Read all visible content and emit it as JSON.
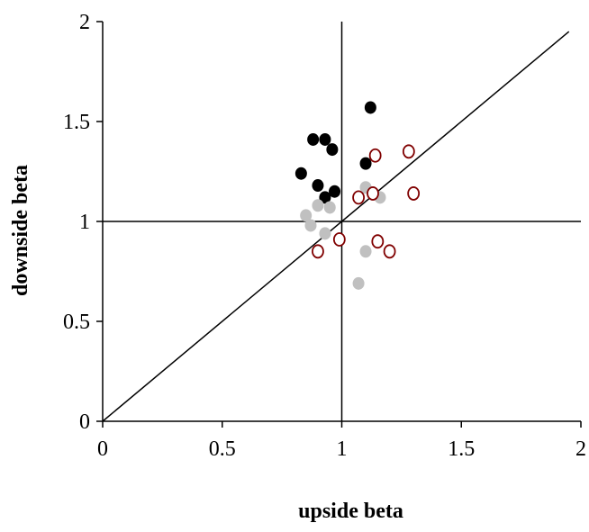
{
  "chart_data": {
    "type": "scatter",
    "title": "",
    "xlabel": "upside beta",
    "ylabel": "downside beta",
    "xlim": [
      0,
      2
    ],
    "ylim": [
      0,
      2
    ],
    "x_ticks": [
      "0",
      "0.5",
      "1",
      "1.5",
      "2"
    ],
    "y_ticks": [
      "0",
      "0.5",
      "1",
      "1.5",
      "2"
    ],
    "x_tick_values": [
      0,
      0.5,
      1,
      1.5,
      2
    ],
    "y_tick_values": [
      0,
      0.5,
      1,
      1.5,
      2
    ],
    "grid": false,
    "legend": "none",
    "reference_lines": [
      {
        "type": "vertical",
        "x": 1
      },
      {
        "type": "horizontal",
        "y": 1
      },
      {
        "type": "diagonal",
        "from": [
          0,
          0
        ],
        "to": [
          1.95,
          1.95
        ]
      }
    ],
    "series": [
      {
        "marker": "filled",
        "color": "#000000",
        "points": [
          [
            0.83,
            1.24
          ],
          [
            0.88,
            1.41
          ],
          [
            0.93,
            1.41
          ],
          [
            0.96,
            1.36
          ],
          [
            0.9,
            1.18
          ],
          [
            0.93,
            1.12
          ],
          [
            0.97,
            1.15
          ],
          [
            1.1,
            1.29
          ],
          [
            1.12,
            1.57
          ]
        ]
      },
      {
        "marker": "filled",
        "color": "#c0c0c0",
        "points": [
          [
            0.85,
            1.03
          ],
          [
            0.87,
            0.98
          ],
          [
            0.9,
            1.08
          ],
          [
            0.93,
            0.94
          ],
          [
            0.95,
            1.07
          ],
          [
            1.1,
            1.17
          ],
          [
            1.16,
            1.12
          ],
          [
            1.1,
            0.85
          ],
          [
            1.07,
            0.69
          ]
        ]
      },
      {
        "marker": "hollow",
        "color": "#800000",
        "points": [
          [
            0.9,
            0.85
          ],
          [
            0.99,
            0.91
          ],
          [
            1.07,
            1.12
          ],
          [
            1.13,
            1.14
          ],
          [
            1.14,
            1.33
          ],
          [
            1.15,
            0.9
          ],
          [
            1.2,
            0.85
          ],
          [
            1.28,
            1.35
          ],
          [
            1.3,
            1.14
          ]
        ]
      }
    ]
  }
}
